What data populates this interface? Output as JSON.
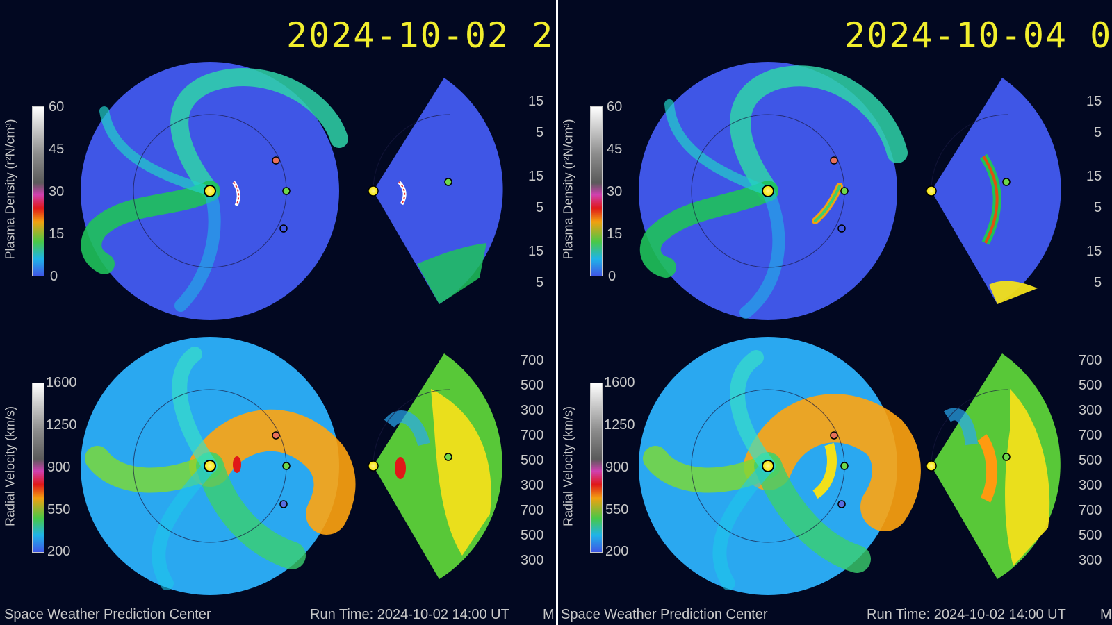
{
  "panels": [
    {
      "timestamp": "2024-10-02  2",
      "density_colorbar": {
        "title": "Plasma Density (r²N/cm³)",
        "ticks": [
          "60",
          "45",
          "30",
          "15",
          "0"
        ]
      },
      "velocity_colorbar": {
        "title": "Radial Velocity (km/s)",
        "ticks": [
          "1600",
          "1250",
          "900",
          "550",
          "200"
        ]
      },
      "density_side_ticks": [
        "15",
        "5",
        "15",
        "5",
        "15",
        "5"
      ],
      "velocity_side_ticks": [
        "700",
        "500",
        "300",
        "700",
        "500",
        "300",
        "700",
        "500",
        "300"
      ],
      "footer": {
        "left": "Space Weather Prediction Center",
        "right": "Run Time: 2024-10-02 14:00 UT",
        "cut": "M"
      }
    },
    {
      "timestamp": "2024-10-04  0",
      "density_colorbar": {
        "title": "Plasma Density (r²N/cm³)",
        "ticks": [
          "60",
          "45",
          "30",
          "15",
          "0"
        ]
      },
      "velocity_colorbar": {
        "title": "Radial Velocity (km/s)",
        "ticks": [
          "1600",
          "1250",
          "900",
          "550",
          "200"
        ]
      },
      "density_side_ticks": [
        "15",
        "5",
        "15",
        "5",
        "15",
        "5"
      ],
      "velocity_side_ticks": [
        "700",
        "500",
        "300",
        "700",
        "500",
        "300",
        "700",
        "500",
        "300"
      ],
      "footer": {
        "left": "Space Weather Prediction Center",
        "right": "Run Time: 2024-10-02 14:00 UT",
        "cut": "M"
      }
    }
  ],
  "colors": {
    "background": "#020821",
    "timestamp": "#f1ee2d",
    "label": "#c8c8c8",
    "sun": "#f5e600",
    "density_base": "#3f56e6",
    "velocity_base": "#2aa8f0",
    "earth": "#6fd84a",
    "stereo_a": "#e8705a",
    "stereo_b": "#5a6ee0"
  }
}
